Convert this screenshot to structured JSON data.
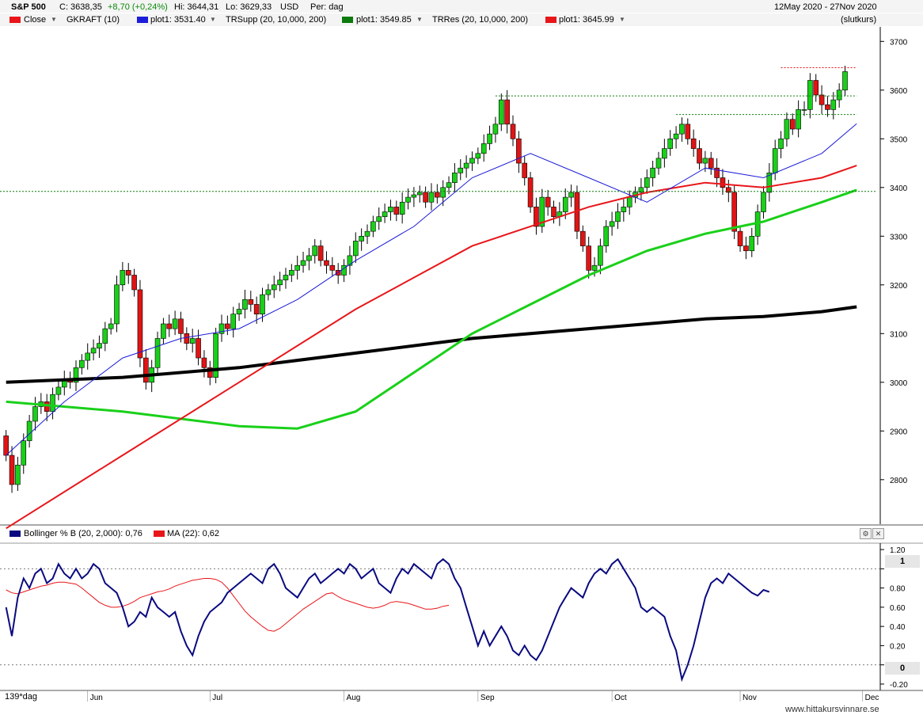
{
  "header": {
    "symbol": "S&P 500",
    "close": "C: 3638,35",
    "change": "+8,70 (+0,24%)",
    "high": "Hi: 3644,31",
    "low": "Lo: 3629,33",
    "currency": "USD",
    "period": "Per: dag",
    "date_range": "12May 2020 - 27Nov 2020",
    "note": "(slutkurs)"
  },
  "legend": [
    {
      "label": "Close",
      "color": "#e8161a"
    },
    {
      "label": "GKRAFT (10)"
    },
    {
      "label": "plot1: 3531.40",
      "color": "#1c1cd9"
    },
    {
      "label": "TRSupp (20, 10,000, 200)"
    },
    {
      "label": "plot1: 3549.85",
      "color": "#0c7a0c"
    },
    {
      "label": "TRRes (20, 10,000, 200)"
    },
    {
      "label": "plot1: 3645.99",
      "color": "#e8161a"
    }
  ],
  "lower_legend": [
    {
      "label": "Bollinger % B (20, 2,000): 0,76",
      "color": "#0a0a80"
    },
    {
      "label": "MA (22): 0,62",
      "color": "#e8161a"
    }
  ],
  "bottom_left_label": "139*dag",
  "watermark": "www.hittakursvinnare.se",
  "colors": {
    "up": "#19d019",
    "down": "#e01414",
    "sma50": "#e8161a",
    "sma100": "#19d019",
    "sma200": "#000000",
    "bbavg": "#1c1cd9",
    "pctb": "#0a0a80"
  },
  "chart_data": [
    {
      "type": "candlestick",
      "title": "S&P 500",
      "y_ticks": [
        2800,
        2900,
        3000,
        3100,
        3200,
        3300,
        3400,
        3500,
        3600,
        3700
      ],
      "ylim": [
        2720,
        3720
      ],
      "x_labels": [
        "Jun",
        "Jul",
        "Aug",
        "Sep",
        "Oct",
        "Nov",
        "Dec"
      ],
      "x_label_days": [
        14,
        35,
        58,
        81,
        104,
        126,
        147
      ],
      "total_days": 150,
      "grid": false,
      "series": [
        {
          "name": "Close",
          "kind": "candles",
          "close": [
            2850,
            2790,
            2830,
            2880,
            2920,
            2950,
            2960,
            2940,
            2975,
            2990,
            3005,
            3000,
            3030,
            3045,
            3060,
            3070,
            3080,
            3110,
            3120,
            3200,
            3230,
            3220,
            3190,
            3050,
            3000,
            3030,
            3090,
            3120,
            3110,
            3130,
            3100,
            3080,
            3090,
            3050,
            3030,
            3010,
            3100,
            3120,
            3110,
            3140,
            3150,
            3170,
            3160,
            3140,
            3180,
            3190,
            3200,
            3210,
            3220,
            3230,
            3240,
            3250,
            3260,
            3280,
            3250,
            3240,
            3230,
            3220,
            3240,
            3260,
            3290,
            3300,
            3310,
            3330,
            3340,
            3350,
            3360,
            3345,
            3370,
            3380,
            3385,
            3390,
            3370,
            3390,
            3380,
            3400,
            3410,
            3430,
            3440,
            3450,
            3460,
            3470,
            3490,
            3510,
            3530,
            3580,
            3530,
            3500,
            3450,
            3420,
            3360,
            3320,
            3380,
            3360,
            3340,
            3350,
            3380,
            3390,
            3310,
            3280,
            3230,
            3240,
            3280,
            3320,
            3330,
            3350,
            3360,
            3380,
            3390,
            3400,
            3420,
            3440,
            3460,
            3480,
            3500,
            3510,
            3530,
            3500,
            3480,
            3450,
            3460,
            3440,
            3420,
            3400,
            3390,
            3310,
            3280,
            3270,
            3300,
            3350,
            3390,
            3430,
            3480,
            3500,
            3540,
            3520,
            3560,
            3560,
            3620,
            3590,
            3570,
            3560,
            3580,
            3600,
            3638
          ],
          "legend_value": 3638.35
        },
        {
          "name": "SMA 50",
          "kind": "line",
          "points": [
            [
              0,
              2700
            ],
            [
              20,
              2850
            ],
            [
              40,
              3000
            ],
            [
              60,
              3150
            ],
            [
              80,
              3280
            ],
            [
              100,
              3360
            ],
            [
              110,
              3390
            ],
            [
              120,
              3410
            ],
            [
              130,
              3400
            ],
            [
              140,
              3420
            ],
            [
              146,
              3445
            ]
          ]
        },
        {
          "name": "SMA 100",
          "kind": "line",
          "points": [
            [
              0,
              2960
            ],
            [
              20,
              2940
            ],
            [
              40,
              2910
            ],
            [
              50,
              2905
            ],
            [
              60,
              2940
            ],
            [
              70,
              3020
            ],
            [
              80,
              3100
            ],
            [
              90,
              3160
            ],
            [
              100,
              3220
            ],
            [
              110,
              3270
            ],
            [
              120,
              3305
            ],
            [
              130,
              3330
            ],
            [
              140,
              3370
            ],
            [
              146,
              3395
            ]
          ]
        },
        {
          "name": "SMA 200",
          "kind": "line",
          "points": [
            [
              0,
              3000
            ],
            [
              20,
              3010
            ],
            [
              40,
              3030
            ],
            [
              60,
              3060
            ],
            [
              80,
              3090
            ],
            [
              100,
              3110
            ],
            [
              110,
              3120
            ],
            [
              120,
              3130
            ],
            [
              130,
              3135
            ],
            [
              140,
              3145
            ],
            [
              146,
              3155
            ]
          ]
        },
        {
          "name": "plot1",
          "kind": "line",
          "legend_value": 3531.4,
          "points": [
            [
              0,
              2850
            ],
            [
              10,
              2960
            ],
            [
              20,
              3050
            ],
            [
              30,
              3090
            ],
            [
              40,
              3110
            ],
            [
              50,
              3170
            ],
            [
              60,
              3250
            ],
            [
              70,
              3320
            ],
            [
              80,
              3420
            ],
            [
              90,
              3470
            ],
            [
              100,
              3420
            ],
            [
              110,
              3370
            ],
            [
              120,
              3440
            ],
            [
              130,
              3420
            ],
            [
              140,
              3470
            ],
            [
              146,
              3531
            ]
          ]
        }
      ],
      "levels": [
        {
          "name": "TRSupp plot1",
          "value": 3549.85
        },
        {
          "name": "TRRes plot1",
          "value": 3645.99
        },
        {
          "name": "support",
          "value": 3392
        },
        {
          "name": "level",
          "value": 3588
        }
      ]
    },
    {
      "type": "line",
      "title": "Bollinger % B (20, 2,000)",
      "y_ticks": [
        -0.2,
        0,
        0.2,
        0.4,
        0.6,
        0.8,
        1,
        1.2
      ],
      "y_tick_labels": [
        "-0.20",
        "0",
        "0.20",
        "0.40",
        "0.60",
        "0.80",
        "1",
        "1.20"
      ],
      "ylim": [
        -0.25,
        1.25
      ],
      "highlighted_levels": [
        1,
        0
      ],
      "series": [
        {
          "name": "Bollinger % B",
          "legend_value": 0.76,
          "values": [
            0.6,
            0.3,
            0.7,
            0.9,
            0.8,
            0.95,
            1.0,
            0.85,
            0.9,
            1.05,
            0.95,
            0.9,
            1.0,
            0.9,
            0.95,
            1.05,
            1.0,
            0.85,
            0.8,
            0.75,
            0.6,
            0.4,
            0.45,
            0.55,
            0.5,
            0.7,
            0.6,
            0.55,
            0.5,
            0.55,
            0.35,
            0.2,
            0.1,
            0.3,
            0.45,
            0.55,
            0.6,
            0.65,
            0.75,
            0.8,
            0.85,
            0.9,
            0.95,
            0.9,
            0.85,
            1.0,
            1.05,
            0.95,
            0.8,
            0.75,
            0.7,
            0.8,
            0.9,
            0.95,
            0.85,
            0.9,
            0.95,
            1.0,
            0.95,
            1.05,
            1.0,
            0.9,
            0.95,
            1.0,
            0.85,
            0.8,
            0.75,
            0.9,
            1.0,
            0.95,
            1.05,
            1.0,
            0.95,
            0.9,
            1.05,
            1.1,
            1.05,
            0.9,
            0.8,
            0.6,
            0.4,
            0.2,
            0.35,
            0.2,
            0.3,
            0.4,
            0.3,
            0.15,
            0.1,
            0.2,
            0.1,
            0.05,
            0.15,
            0.3,
            0.45,
            0.6,
            0.7,
            0.8,
            0.75,
            0.7,
            0.85,
            0.95,
            1.0,
            0.95,
            1.05,
            1.1,
            1.0,
            0.9,
            0.8,
            0.6,
            0.55,
            0.6,
            0.55,
            0.5,
            0.3,
            0.15,
            -0.15,
            0.0,
            0.2,
            0.45,
            0.7,
            0.85,
            0.9,
            0.85,
            0.95,
            0.9,
            0.85,
            0.8,
            0.75,
            0.72,
            0.78,
            0.76
          ]
        },
        {
          "name": "MA (22)",
          "legend_value": 0.62,
          "values": [
            0.78,
            0.75,
            0.74,
            0.76,
            0.78,
            0.8,
            0.82,
            0.83,
            0.85,
            0.86,
            0.86,
            0.85,
            0.84,
            0.8,
            0.75,
            0.7,
            0.65,
            0.62,
            0.6,
            0.6,
            0.61,
            0.63,
            0.66,
            0.7,
            0.72,
            0.74,
            0.76,
            0.77,
            0.79,
            0.82,
            0.84,
            0.86,
            0.88,
            0.89,
            0.9,
            0.9,
            0.89,
            0.86,
            0.8,
            0.72,
            0.64,
            0.56,
            0.5,
            0.45,
            0.4,
            0.36,
            0.35,
            0.38,
            0.43,
            0.48,
            0.53,
            0.58,
            0.62,
            0.66,
            0.7,
            0.74,
            0.75,
            0.71,
            0.68,
            0.66,
            0.64,
            0.62,
            0.6,
            0.59,
            0.6,
            0.62,
            0.65,
            0.66,
            0.65,
            0.64,
            0.62,
            0.6,
            0.58,
            0.58,
            0.59,
            0.61,
            0.62
          ]
        }
      ]
    }
  ]
}
